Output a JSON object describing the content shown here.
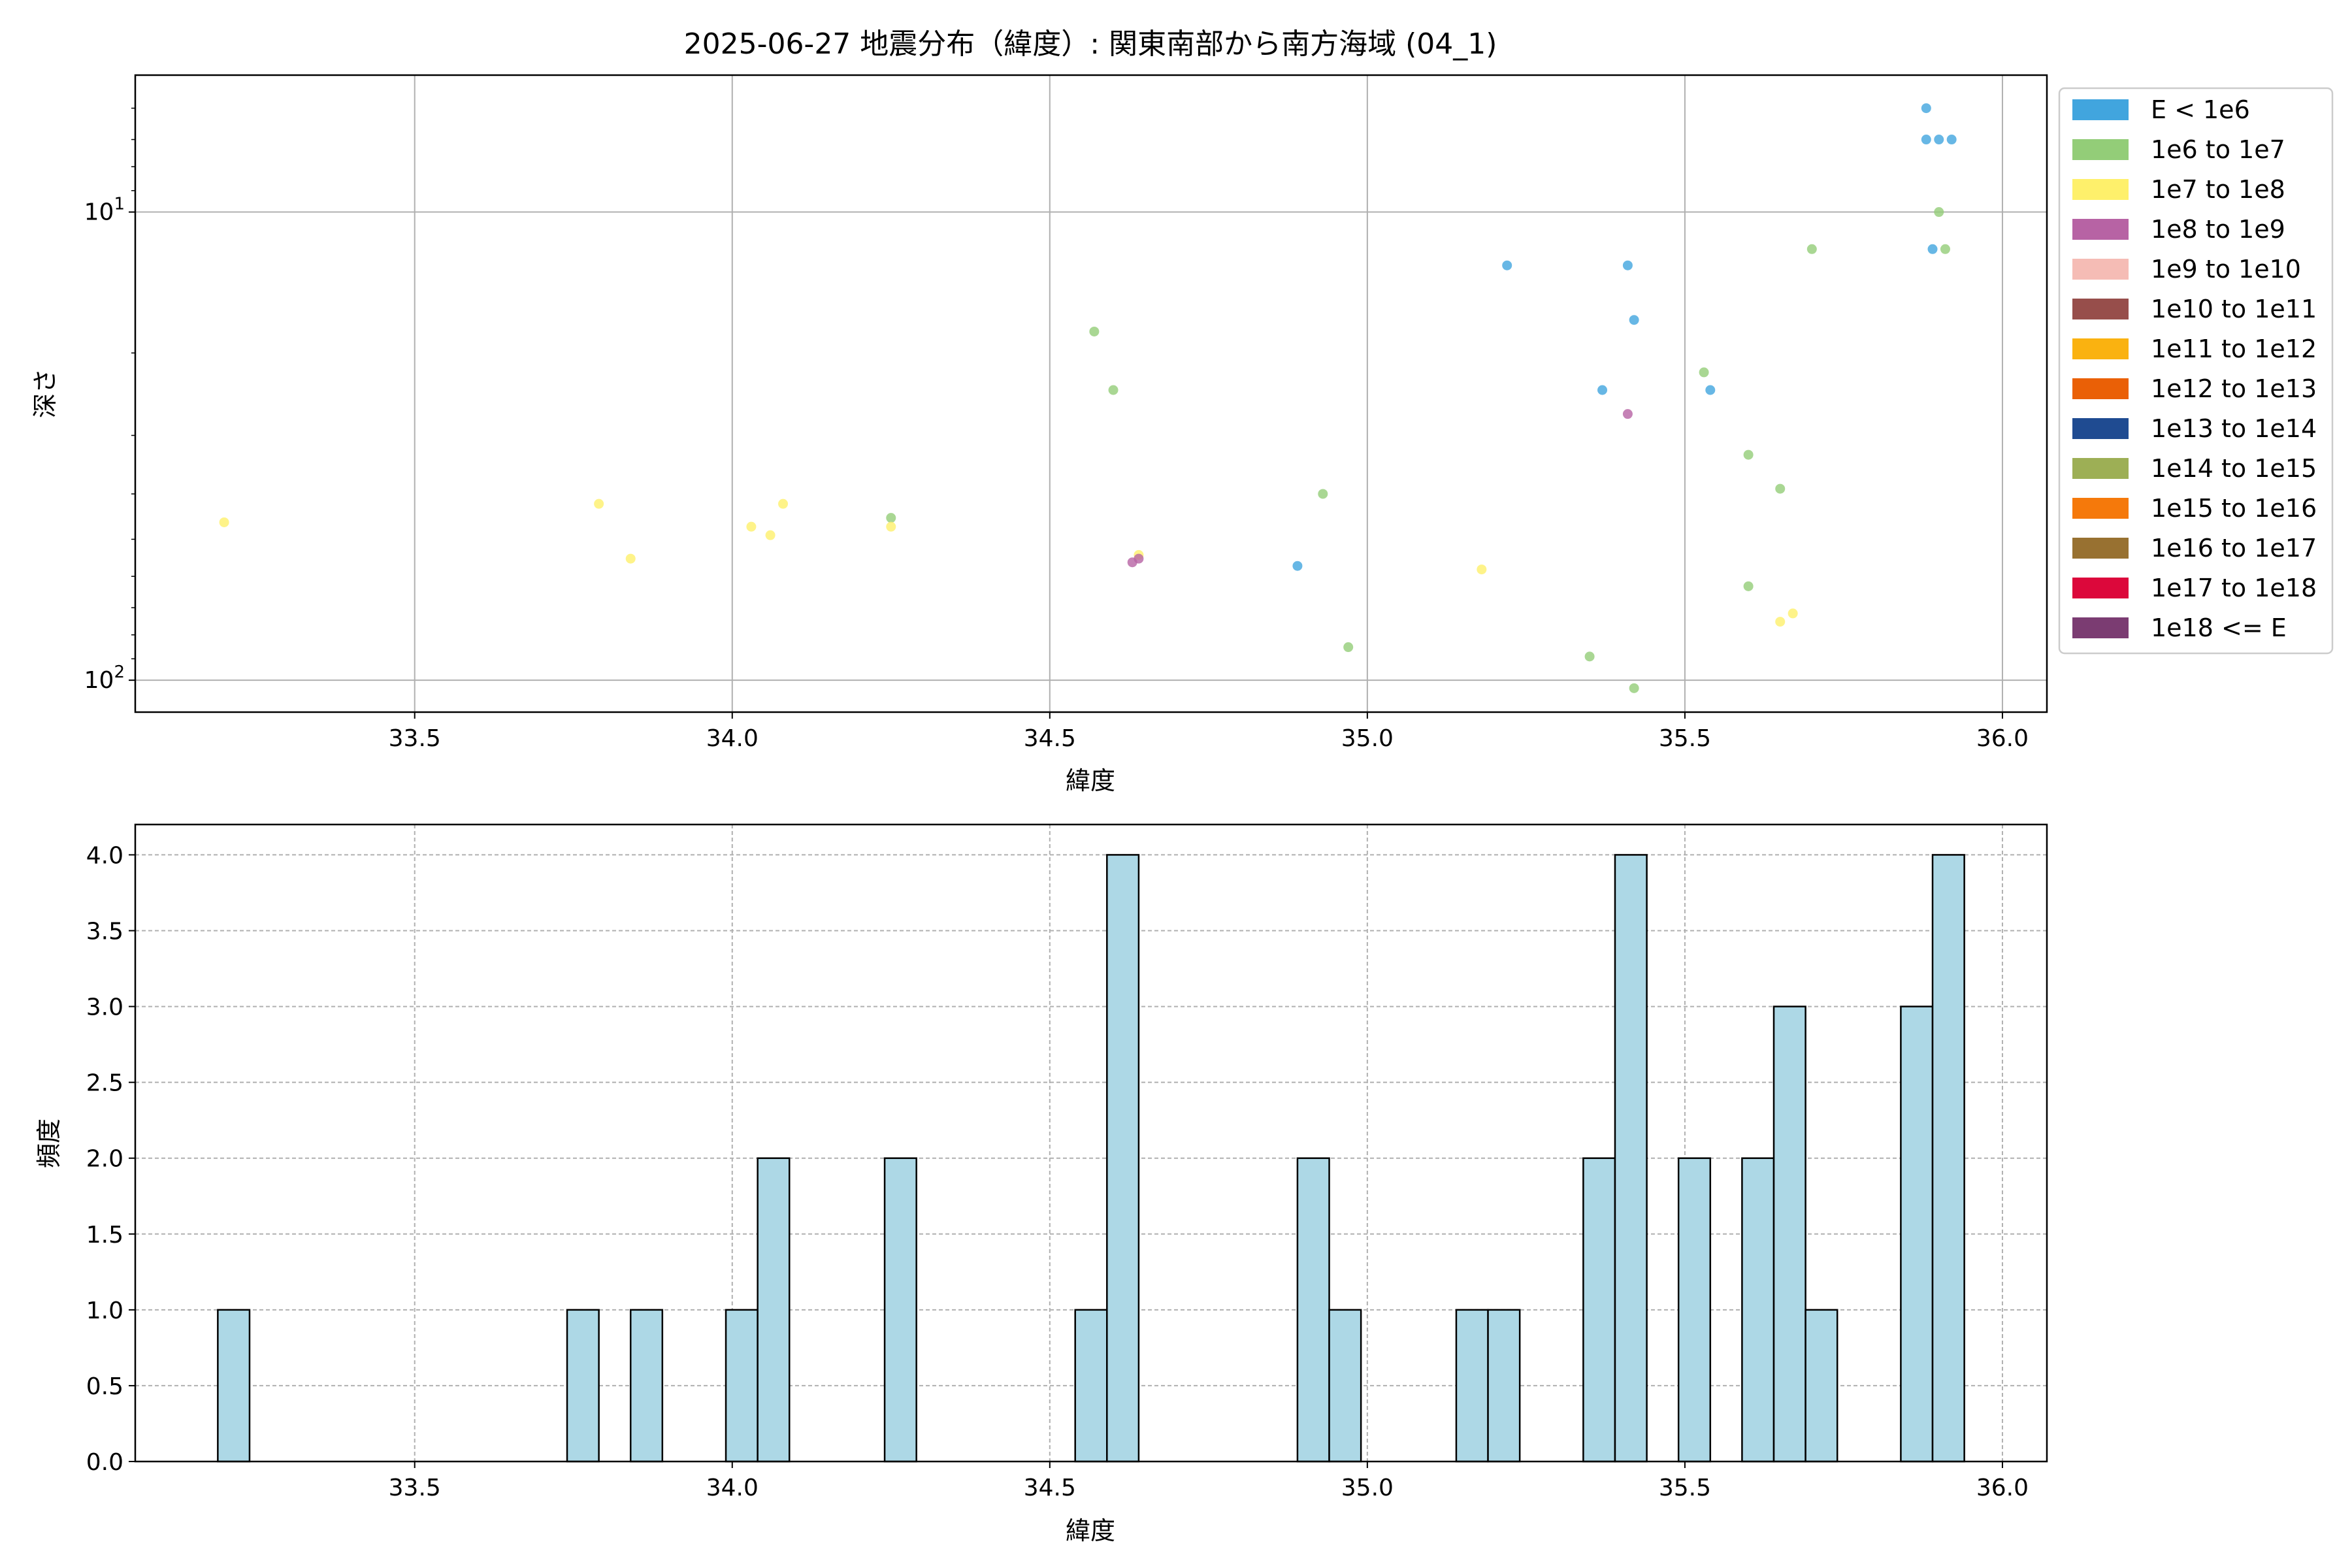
{
  "chart_data": [
    {
      "type": "scatter",
      "title": "2025-06-27 地震分布（緯度）: 関東南部から南方海域 (04_1)",
      "xlabel": "緯度",
      "ylabel": "深さ",
      "xlim": [
        33.06,
        36.07
      ],
      "ylim": [
        117,
        5.1
      ],
      "yscale": "log",
      "y_inverted": true,
      "grid": true,
      "x_ticks": [
        33.5,
        34.0,
        34.5,
        35.0,
        35.5,
        36.0
      ],
      "x_tick_labels": [
        "33.5",
        "34.0",
        "34.5",
        "35.0",
        "35.5",
        "36.0"
      ],
      "y_major_ticks": [
        10,
        100
      ],
      "y_tick_labels": [
        {
          "base": "10",
          "exp": "1"
        },
        {
          "base": "10",
          "exp": "2"
        }
      ],
      "legend_position": "outside-right",
      "legend": [
        {
          "label": "E < 1e6",
          "color": "#41a5de"
        },
        {
          "label": "1e6 to 1e7",
          "color": "#93cd78"
        },
        {
          "label": "1e7 to 1e8",
          "color": "#fef06b"
        },
        {
          "label": "1e8 to 1e9",
          "color": "#b763a4"
        },
        {
          "label": "1e9 to 1e10",
          "color": "#f5bcb5"
        },
        {
          "label": "1e10 to 1e11",
          "color": "#974e4b"
        },
        {
          "label": "1e11 to 1e12",
          "color": "#fab210"
        },
        {
          "label": "1e12 to 1e13",
          "color": "#ea6006"
        },
        {
          "label": "1e13 to 1e14",
          "color": "#1f4b91"
        },
        {
          "label": "1e14 to 1e15",
          "color": "#9daf55"
        },
        {
          "label": "1e15 to 1e16",
          "color": "#f5790b"
        },
        {
          "label": "1e16 to 1e17",
          "color": "#987131"
        },
        {
          "label": "1e17 to 1e18",
          "color": "#dc083b"
        },
        {
          "label": "1e18 <= E",
          "color": "#7b3c72"
        }
      ],
      "series": [
        {
          "name": "E < 1e6",
          "color": "#41a5de",
          "points": [
            {
              "x": 35.88,
              "y": 6
            },
            {
              "x": 35.88,
              "y": 7
            },
            {
              "x": 35.9,
              "y": 7
            },
            {
              "x": 35.92,
              "y": 7
            },
            {
              "x": 35.89,
              "y": 12
            },
            {
              "x": 35.22,
              "y": 13
            },
            {
              "x": 35.41,
              "y": 13
            },
            {
              "x": 35.42,
              "y": 17
            },
            {
              "x": 35.37,
              "y": 24
            },
            {
              "x": 35.54,
              "y": 24
            },
            {
              "x": 34.89,
              "y": 57
            }
          ]
        },
        {
          "name": "1e6 to 1e7",
          "color": "#93cd78",
          "points": [
            {
              "x": 35.9,
              "y": 10
            },
            {
              "x": 35.7,
              "y": 12
            },
            {
              "x": 35.91,
              "y": 12
            },
            {
              "x": 34.57,
              "y": 18
            },
            {
              "x": 35.53,
              "y": 22
            },
            {
              "x": 34.6,
              "y": 24
            },
            {
              "x": 35.6,
              "y": 33
            },
            {
              "x": 35.65,
              "y": 39
            },
            {
              "x": 34.93,
              "y": 40
            },
            {
              "x": 34.25,
              "y": 45
            },
            {
              "x": 35.6,
              "y": 63
            },
            {
              "x": 34.97,
              "y": 85
            },
            {
              "x": 35.35,
              "y": 89
            },
            {
              "x": 35.42,
              "y": 104
            }
          ]
        },
        {
          "name": "1e7 to 1e8",
          "color": "#fef06b",
          "points": [
            {
              "x": 33.2,
              "y": 46
            },
            {
              "x": 33.79,
              "y": 42
            },
            {
              "x": 33.84,
              "y": 55
            },
            {
              "x": 34.03,
              "y": 47
            },
            {
              "x": 34.06,
              "y": 49
            },
            {
              "x": 34.08,
              "y": 42
            },
            {
              "x": 34.25,
              "y": 47
            },
            {
              "x": 34.64,
              "y": 54
            },
            {
              "x": 35.18,
              "y": 58
            },
            {
              "x": 35.65,
              "y": 75
            },
            {
              "x": 35.67,
              "y": 72
            }
          ]
        },
        {
          "name": "1e8 to 1e9",
          "color": "#b763a4",
          "points": [
            {
              "x": 35.41,
              "y": 27
            },
            {
              "x": 34.63,
              "y": 56
            },
            {
              "x": 34.64,
              "y": 55
            }
          ]
        }
      ]
    },
    {
      "type": "bar",
      "title": "",
      "xlabel": "緯度",
      "ylabel": "頻度",
      "xlim": [
        33.06,
        36.07
      ],
      "ylim": [
        0,
        4.2
      ],
      "grid": true,
      "x_ticks": [
        33.5,
        34.0,
        34.5,
        35.0,
        35.5,
        36.0
      ],
      "x_tick_labels": [
        "33.5",
        "34.0",
        "34.5",
        "35.0",
        "35.5",
        "36.0"
      ],
      "y_ticks": [
        0,
        0.5,
        1,
        1.5,
        2,
        2.5,
        3,
        3.5,
        4
      ],
      "y_tick_labels": [
        "0.0",
        "0.5",
        "1.0",
        "1.5",
        "2.0",
        "2.5",
        "3.0",
        "3.5",
        "4.0"
      ],
      "bar_color": "#add8e6",
      "bin_width": 0.05,
      "bins": [
        {
          "start": 33.19,
          "count": 1
        },
        {
          "start": 33.74,
          "count": 1
        },
        {
          "start": 33.84,
          "count": 1
        },
        {
          "start": 33.99,
          "count": 1
        },
        {
          "start": 34.04,
          "count": 2
        },
        {
          "start": 34.24,
          "count": 2
        },
        {
          "start": 34.54,
          "count": 1
        },
        {
          "start": 34.59,
          "count": 4
        },
        {
          "start": 34.89,
          "count": 2
        },
        {
          "start": 34.94,
          "count": 1
        },
        {
          "start": 35.14,
          "count": 1
        },
        {
          "start": 35.19,
          "count": 1
        },
        {
          "start": 35.34,
          "count": 2
        },
        {
          "start": 35.39,
          "count": 4
        },
        {
          "start": 35.49,
          "count": 2
        },
        {
          "start": 35.59,
          "count": 2
        },
        {
          "start": 35.64,
          "count": 3
        },
        {
          "start": 35.69,
          "count": 1
        },
        {
          "start": 35.84,
          "count": 3
        },
        {
          "start": 35.89,
          "count": 4
        }
      ]
    }
  ]
}
